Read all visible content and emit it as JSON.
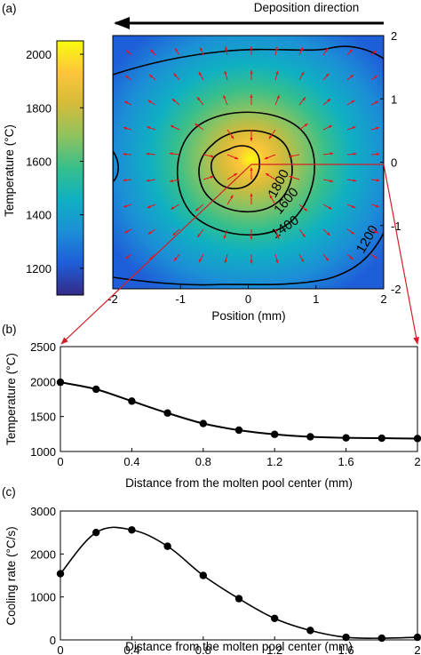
{
  "colors": {
    "curve": "#000000",
    "arrows": "#e8141b",
    "guide_lines": "#d41f26",
    "colormap": [
      "#352a87",
      "#1e5ed8",
      "#1c8fd6",
      "#0fb0c2",
      "#36bf8c",
      "#8ec35f",
      "#d4bb3a",
      "#fdc53a",
      "#f9fb0e"
    ]
  },
  "panel_a": {
    "label": "(a)",
    "direction_label": "Deposition direction",
    "x_label": "Position (mm)",
    "x_ticks": [
      "-2",
      "-1",
      "0",
      "1",
      "2"
    ],
    "y_ticks_right": [
      "2",
      "1",
      "0",
      "-1",
      "-2"
    ],
    "colorbar_label": "Temperature (°C)",
    "colorbar_ticks": [
      "2000",
      "1800",
      "1600",
      "1400",
      "1200"
    ],
    "colorbar_range": [
      1100,
      2050
    ],
    "contour_labels": [
      "1800",
      "1600",
      "1400",
      "1200"
    ],
    "x_range": [
      -2,
      2
    ],
    "y_range": [
      -2,
      2
    ]
  },
  "chart_data": [
    {
      "type": "line",
      "panel": "(b)",
      "xlabel": "Distance from the molten pool center (mm)",
      "ylabel": "Temperature (°C)",
      "x": [
        0,
        0.2,
        0.4,
        0.6,
        0.8,
        1.0,
        1.2,
        1.4,
        1.6,
        1.8,
        2.0
      ],
      "y": [
        1990,
        1890,
        1720,
        1550,
        1400,
        1305,
        1245,
        1210,
        1195,
        1190,
        1185
      ],
      "xlim": [
        0,
        2
      ],
      "ylim": [
        1000,
        2500
      ],
      "x_ticks": [
        "0",
        "0.4",
        "0.8",
        "1.2",
        "1.6",
        "2"
      ],
      "y_ticks": [
        "1000",
        "1500",
        "2000",
        "2500"
      ],
      "markers": true
    },
    {
      "type": "line",
      "panel": "(c)",
      "xlabel": "Distance from the molten pool center (mm)",
      "ylabel": "Cooling rate (°C/s)",
      "x": [
        0,
        0.2,
        0.4,
        0.6,
        0.8,
        1.0,
        1.2,
        1.4,
        1.6,
        1.8,
        2.0
      ],
      "y": [
        1540,
        2500,
        2560,
        2180,
        1500,
        960,
        500,
        220,
        60,
        40,
        60
      ],
      "xlim": [
        0,
        2
      ],
      "ylim": [
        0,
        3000
      ],
      "x_ticks": [
        "0",
        "0.4",
        "0.8",
        "1.2",
        "1.6",
        "2"
      ],
      "y_ticks": [
        "0",
        "1000",
        "2000",
        "3000"
      ],
      "markers": true
    }
  ]
}
